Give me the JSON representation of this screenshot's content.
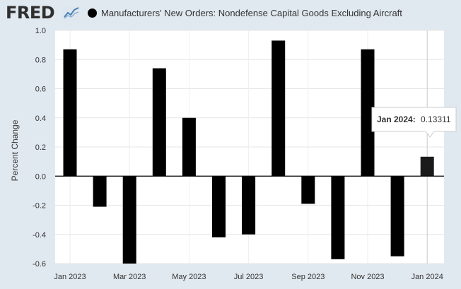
{
  "header": {
    "logo_text": "FRED",
    "legend_label": "Manufacturers' New Orders: Nondefense Capital Goods Excluding Aircraft",
    "legend_color": "#000000"
  },
  "tooltip": {
    "label": "Jan 2024:",
    "value": "0.13311"
  },
  "chart_data": {
    "type": "bar",
    "ylabel": "Percent Change",
    "ylim": [
      -0.6,
      1.0
    ],
    "yticks": [
      "1.0",
      "0.8",
      "0.6",
      "0.4",
      "0.2",
      "0.0",
      "-0.2",
      "-0.4",
      "-0.6"
    ],
    "xtick_labels": [
      "Jan 2023",
      "Mar 2023",
      "May 2023",
      "Jul 2023",
      "Sep 2023",
      "Nov 2023",
      "Jan 2024"
    ],
    "series": [
      {
        "categories": [
          "Jan 2023",
          "Feb 2023",
          "Mar 2023",
          "Apr 2023",
          "May 2023",
          "Jun 2023",
          "Jul 2023",
          "Aug 2023",
          "Sep 2023",
          "Oct 2023",
          "Nov 2023",
          "Dec 2023",
          "Jan 2024"
        ],
        "values": [
          0.87,
          -0.21,
          -0.6,
          0.74,
          0.4,
          -0.42,
          -0.4,
          0.93,
          -0.19,
          -0.57,
          0.87,
          -0.55,
          0.13311
        ],
        "color": "#000000"
      }
    ],
    "grid": true,
    "highlight_color": "#1a1a1a"
  }
}
